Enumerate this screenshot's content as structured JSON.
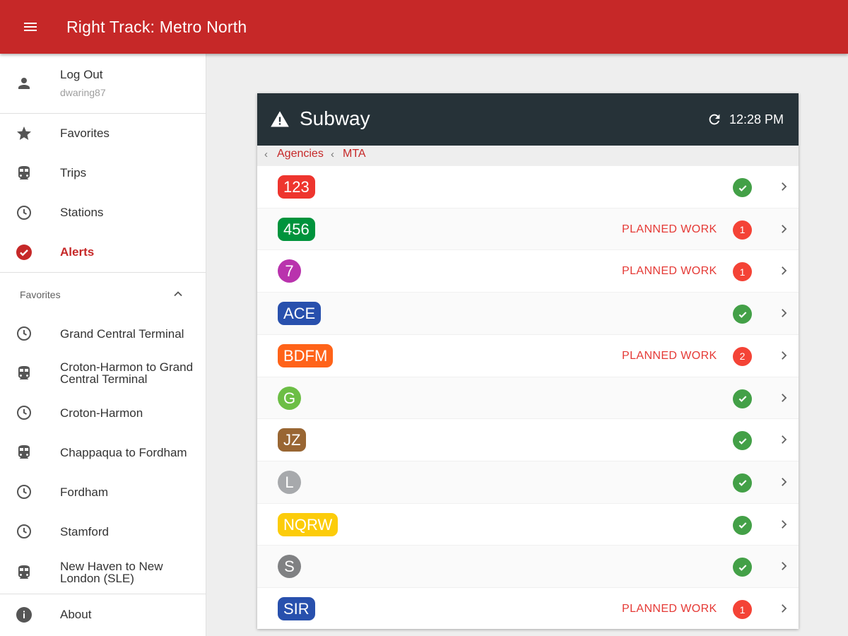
{
  "app": {
    "title": "Right Track: Metro North"
  },
  "colors": {
    "brand": "#c62828",
    "card_header": "#263238",
    "ok": "#43a047",
    "alert": "#f44336"
  },
  "sidebar": {
    "user": {
      "label": "Log Out",
      "username": "dwaring87",
      "icon": "person-icon"
    },
    "nav": [
      {
        "label": "Favorites",
        "icon": "star-icon"
      },
      {
        "label": "Trips",
        "icon": "train-icon"
      },
      {
        "label": "Stations",
        "icon": "clock-icon"
      },
      {
        "label": "Alerts",
        "icon": "check-circle-icon",
        "active": true
      }
    ],
    "favorites_header": "Favorites",
    "favorites": [
      {
        "label": "Grand Central Terminal",
        "icon": "clock-icon"
      },
      {
        "label": "Croton-Harmon to Grand Central Terminal",
        "icon": "train-icon"
      },
      {
        "label": "Croton-Harmon",
        "icon": "clock-icon"
      },
      {
        "label": "Chappaqua to Fordham",
        "icon": "train-icon"
      },
      {
        "label": "Fordham",
        "icon": "clock-icon"
      },
      {
        "label": "Stamford",
        "icon": "clock-icon"
      },
      {
        "label": "New Haven to New London (SLE)",
        "icon": "train-icon"
      }
    ],
    "about": {
      "label": "About",
      "icon": "info-icon"
    }
  },
  "card": {
    "title": "Subway",
    "time": "12:28 PM",
    "breadcrumb": {
      "first": "Agencies",
      "second": "MTA"
    },
    "lines": [
      {
        "name": "123",
        "color": "#ee352e",
        "status": "ok",
        "note": ""
      },
      {
        "name": "456",
        "color": "#00933c",
        "status": "alert",
        "count": "1",
        "note": "PLANNED WORK"
      },
      {
        "name": "7",
        "color": "#b933ad",
        "status": "alert",
        "count": "1",
        "note": "PLANNED WORK"
      },
      {
        "name": "ACE",
        "color": "#2850ad",
        "status": "ok",
        "note": ""
      },
      {
        "name": "BDFM",
        "color": "#ff6319",
        "status": "alert",
        "count": "2",
        "note": "PLANNED WORK"
      },
      {
        "name": "G",
        "color": "#6cbe45",
        "status": "ok",
        "note": ""
      },
      {
        "name": "JZ",
        "color": "#996633",
        "status": "ok",
        "note": ""
      },
      {
        "name": "L",
        "color": "#a7a9ac",
        "status": "ok",
        "note": ""
      },
      {
        "name": "NQRW",
        "color": "#fccc0a",
        "status": "ok",
        "note": ""
      },
      {
        "name": "S",
        "color": "#808183",
        "status": "ok",
        "note": ""
      },
      {
        "name": "SIR",
        "color": "#2850ad",
        "status": "alert",
        "count": "1",
        "note": "PLANNED WORK"
      }
    ]
  }
}
